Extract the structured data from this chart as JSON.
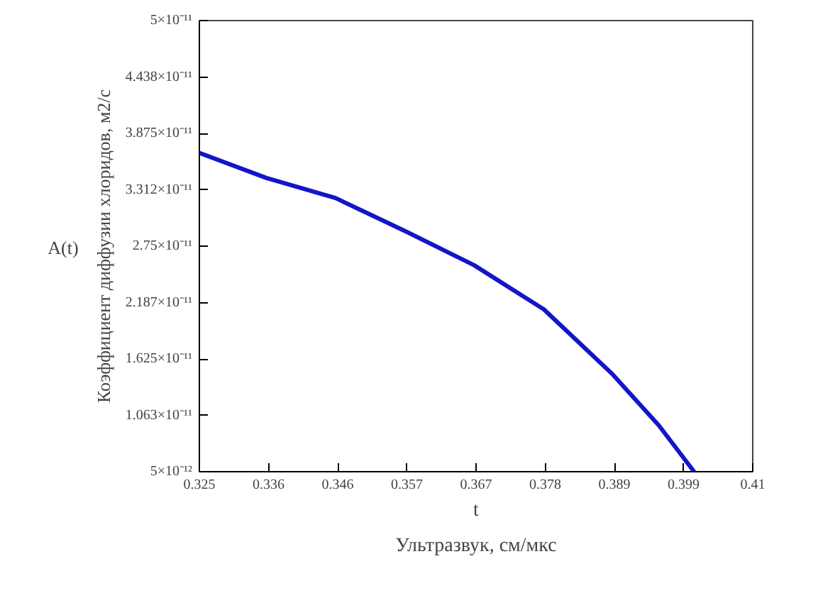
{
  "chart_data": {
    "type": "line",
    "xlabel": "t",
    "ylabel": "Коэффициент диффузии хлоридов, м2/с",
    "annotations": [
      "Ультразвук, см/мкс"
    ],
    "x": [
      0.325,
      0.3353,
      0.3459,
      0.3566,
      0.3672,
      0.3779,
      0.3885,
      0.3956,
      0.401
    ],
    "series": [
      {
        "name": "A(t)",
        "color": "#1414c8",
        "values": [
          3.68e-11,
          3.43e-11,
          3.23e-11,
          2.9e-11,
          2.56e-11,
          2.12e-11,
          1.47e-11,
          9.6e-12,
          5e-12
        ]
      }
    ],
    "xlim": [
      0.325,
      0.41
    ],
    "xticks": [
      0.325,
      {
        "value": 0.335625,
        "label": "0.336"
      },
      {
        "value": 0.34625,
        "label": "0.346"
      },
      {
        "value": 0.356875,
        "label": "0.357"
      },
      {
        "value": 0.3675,
        "label": "0.367"
      },
      {
        "value": 0.378125,
        "label": "0.378"
      },
      {
        "value": 0.38875,
        "label": "0.389"
      },
      {
        "value": 0.399375,
        "label": "0.399"
      },
      0.41
    ],
    "ylim": [
      5e-12,
      5e-11
    ],
    "yticks": [
      {
        "value": 5e-12,
        "label": "5×10⁻¹²"
      },
      {
        "value": 1.0625e-11,
        "label": "1.063×10⁻¹¹"
      },
      {
        "value": 1.625e-11,
        "label": "1.625×10⁻¹¹"
      },
      {
        "value": 2.1875e-11,
        "label": "2.187×10⁻¹¹"
      },
      {
        "value": 2.75e-11,
        "label": "2.75×10⁻¹¹"
      },
      {
        "value": 3.3125e-11,
        "label": "3.312×10⁻¹¹"
      },
      {
        "value": 3.875e-11,
        "label": "3.875×10⁻¹¹"
      },
      {
        "value": 4.4375e-11,
        "label": "4.438×10⁻¹¹"
      },
      {
        "value": 5e-11,
        "label": "5×10⁻¹¹"
      }
    ],
    "grid": false,
    "legend": "left",
    "marker": "none",
    "line_style": "solid"
  }
}
